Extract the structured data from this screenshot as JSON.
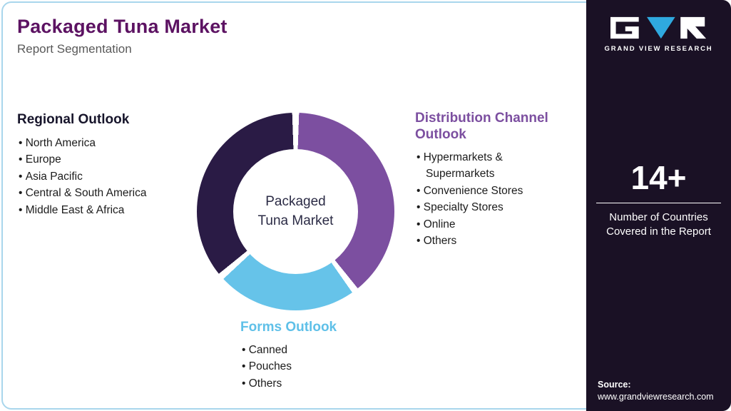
{
  "header": {
    "title": "Packaged Tuna Market",
    "subtitle": "Report Segmentation"
  },
  "sections": {
    "regional": {
      "heading": "Regional Outlook",
      "items": [
        "North America",
        "Europe",
        "Asia Pacific",
        "Central & South America",
        "Middle East & Africa"
      ]
    },
    "distribution": {
      "heading": "Distribution Channel Outlook",
      "items": [
        "Hypermarkets & Supermarkets",
        "Convenience Stores",
        "Specialty Stores",
        "Online",
        "Others"
      ]
    },
    "forms": {
      "heading": "Forms Outlook",
      "items": [
        "Canned",
        "Pouches",
        "Others"
      ]
    }
  },
  "chart_data": {
    "type": "pie",
    "title": "Packaged Tuna Market Report Segmentation",
    "center_label": "Packaged\nTuna Market",
    "donut": true,
    "legend_position": "around",
    "segments": [
      {
        "name": "Distribution Channel Outlook",
        "color": "#7C4FA0",
        "start_deg": 2,
        "end_deg": 141
      },
      {
        "name": "Forms Outlook",
        "color": "#66C3E9",
        "start_deg": 145,
        "end_deg": 227
      },
      {
        "name": "Regional Outlook",
        "color": "#2A1B45",
        "start_deg": 231,
        "end_deg": 358
      }
    ]
  },
  "sidebar": {
    "logo_text": "GRAND VIEW RESEARCH",
    "stat_value": "14+",
    "stat_label": "Number of Countries Covered in the Report",
    "source_label": "Source:",
    "source_url": "www.grandviewresearch.com"
  },
  "colors": {
    "title": "#5C1262",
    "subtitle": "#595959",
    "heading_dark": "#17152B",
    "heading_purple": "#7C4FA0",
    "heading_blue": "#5FC0E8",
    "text": "#1C1C1C",
    "center_text": "#2B2B45",
    "sidebar_bg": "#1A1125",
    "border": "#A9D6EC",
    "logo_accent": "#2FA9DF"
  }
}
